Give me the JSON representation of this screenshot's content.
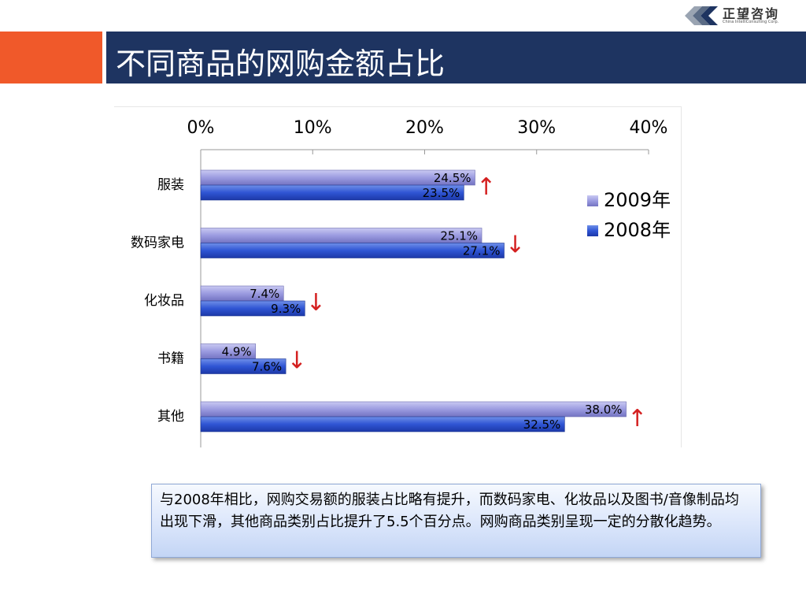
{
  "header": {
    "logo_text": "正望咨询",
    "logo_subtext": "China IntelliConsulting Corp."
  },
  "title": "不同商品的网购金额占比",
  "colors": {
    "series_2009": "#9b9be0",
    "series_2008": "#2f55d4",
    "trend_arrow": "#d42020",
    "title_bar": "#1e3461",
    "title_accent": "#f0592a"
  },
  "chart_data": {
    "type": "bar",
    "orientation": "horizontal",
    "categories": [
      "服装",
      "数码家电",
      "化妆品",
      "书籍",
      "其他"
    ],
    "series": [
      {
        "name": "2009年",
        "values": [
          24.5,
          25.1,
          7.4,
          4.9,
          38.0
        ]
      },
      {
        "name": "2008年",
        "values": [
          23.5,
          27.1,
          9.3,
          7.6,
          32.5
        ]
      }
    ],
    "data_labels_2009": [
      "24.5%",
      "25.1%",
      "7.4%",
      "4.9%",
      "38.0%"
    ],
    "data_labels_2008": [
      "23.5%",
      "27.1%",
      "9.3%",
      "7.6%",
      "32.5%"
    ],
    "trend": [
      "up",
      "down",
      "down",
      "down",
      "up"
    ],
    "trend_glyphs": {
      "up": "↑",
      "down": "↓"
    },
    "xlim": [
      0,
      40
    ],
    "xticks": [
      "0%",
      "10%",
      "20%",
      "30%",
      "40%"
    ],
    "axis_position": "top",
    "grid": true,
    "legend_position": "right"
  },
  "note": "与2008年相比，网购交易额的服装占比略有提升，而数码家电、化妆品以及图书/音像制品均出现下滑，其他商品类别占比提升了5.5个百分点。网购商品类别呈现一定的分散化趋势。"
}
